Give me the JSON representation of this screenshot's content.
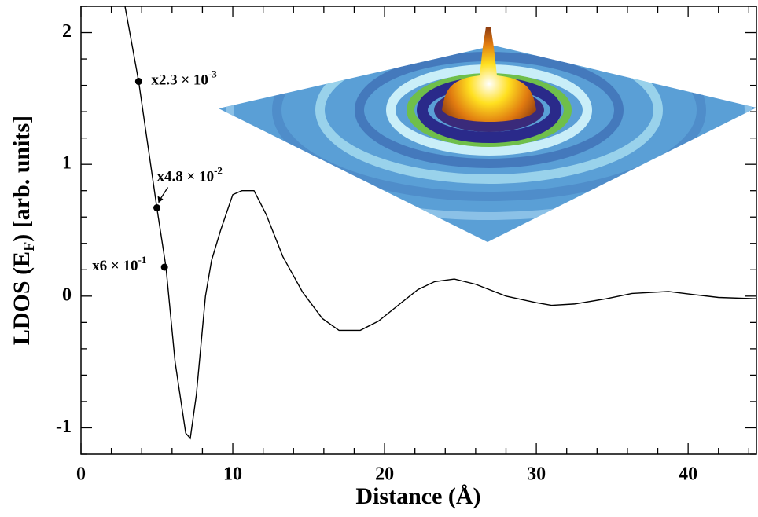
{
  "chart_data": {
    "type": "line",
    "x_label": "Distance (Å)",
    "y_label": {
      "main": "LDOS (E",
      "subscript": "F",
      "rest": ") [arb. units]"
    },
    "xlim": [
      0,
      44.5
    ],
    "ylim": [
      -1.2,
      2.2
    ],
    "xticks": [
      0,
      10,
      20,
      30,
      40
    ],
    "yticks": [
      -1,
      0,
      1,
      2
    ],
    "xminorticks": [
      2,
      4,
      6,
      8,
      12,
      14,
      16,
      18,
      22,
      24,
      26,
      28,
      32,
      34,
      36,
      38,
      42,
      44
    ],
    "yminorticks": [
      -1.2,
      -0.8,
      -0.6,
      -0.4,
      -0.2,
      0.2,
      0.4,
      0.6,
      0.8,
      1.2,
      1.4,
      1.6,
      1.8,
      2.2
    ],
    "series": [
      {
        "color": "#000000",
        "x": [
          2.9,
          3.8,
          5.0,
          5.6,
          6.2,
          6.9,
          7.2,
          7.6,
          8.2,
          8.6,
          9.2,
          10.0,
          10.6,
          11.4,
          12.2,
          13.3,
          14.6,
          15.9,
          17.0,
          18.4,
          19.6,
          21.0,
          22.2,
          23.3,
          24.6,
          26.0,
          28.0,
          30.0,
          31.0,
          32.5,
          34.6,
          36.3,
          38.7,
          40.5,
          42.0,
          44.5
        ],
        "values": [
          2.2,
          1.63,
          0.67,
          0.22,
          -0.5,
          -1.04,
          -1.08,
          -0.75,
          0.0,
          0.27,
          0.5,
          0.77,
          0.8,
          0.8,
          0.62,
          0.3,
          0.03,
          -0.17,
          -0.26,
          -0.26,
          -0.19,
          -0.06,
          0.05,
          0.11,
          0.13,
          0.09,
          0.0,
          -0.05,
          -0.07,
          -0.06,
          -0.02,
          0.02,
          0.035,
          0.01,
          -0.01,
          -0.02
        ]
      }
    ],
    "annotations": [
      {
        "text": "x2.3 × 10",
        "exponent": "-3",
        "x": 3.8,
        "y": 1.63
      },
      {
        "text": "x4.8 × 10",
        "exponent": "-2",
        "x": 5.0,
        "y": 0.67
      },
      {
        "text": "x6 × 10",
        "exponent": "-1",
        "x": 5.5,
        "y": 0.22
      }
    ]
  }
}
